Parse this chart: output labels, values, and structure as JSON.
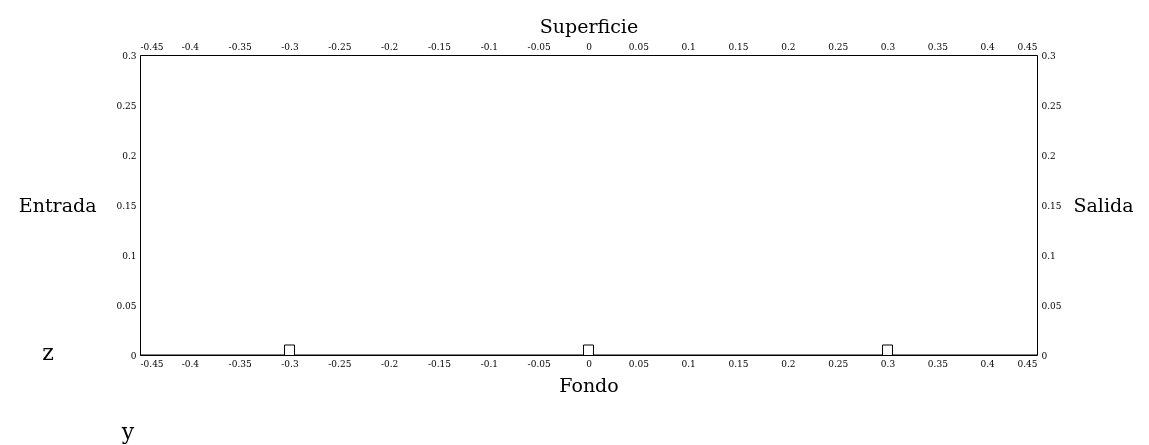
{
  "chart_data": {
    "type": "line",
    "xlabel": "Fondo",
    "x2label": "Superficie",
    "ylabel": "Entrada",
    "y2label": "Salida",
    "series": [
      {
        "color": "#000000",
        "x": [
          -0.45,
          -0.305,
          -0.305,
          -0.295,
          -0.295,
          -0.005,
          -0.005,
          0.005,
          0.005,
          0.295,
          0.295,
          0.305,
          0.305,
          0.45
        ],
        "values": [
          0,
          0,
          0.01,
          0.01,
          0,
          0,
          0.01,
          0.01,
          0,
          0,
          0.01,
          0.01,
          0,
          0
        ]
      }
    ],
    "xlim": [
      -0.45,
      0.45
    ],
    "xticks": [
      -0.45,
      -0.4,
      -0.35,
      -0.3,
      -0.25,
      -0.2,
      -0.15,
      -0.1,
      -0.05,
      0,
      0.05,
      0.1,
      0.15,
      0.2,
      0.25,
      0.3,
      0.35,
      0.4,
      0.45
    ],
    "x2lim": [
      -0.45,
      0.45
    ],
    "x2ticks": [
      -0.45,
      -0.4,
      -0.35,
      -0.3,
      -0.25,
      -0.2,
      -0.15,
      -0.1,
      -0.05,
      0,
      0.05,
      0.1,
      0.15,
      0.2,
      0.25,
      0.3,
      0.35,
      0.4,
      0.45
    ],
    "ylim": [
      0,
      0.3
    ],
    "yticks": [
      0,
      0.05,
      0.1,
      0.15,
      0.2,
      0.25,
      0.3
    ],
    "y2lim": [
      0,
      0.3
    ],
    "y2ticks": [
      0,
      0.05,
      0.1,
      0.15,
      0.2,
      0.25,
      0.3
    ],
    "grid": false,
    "marker": "none",
    "line_style": "solid",
    "annotations": [
      "z",
      "y"
    ]
  }
}
